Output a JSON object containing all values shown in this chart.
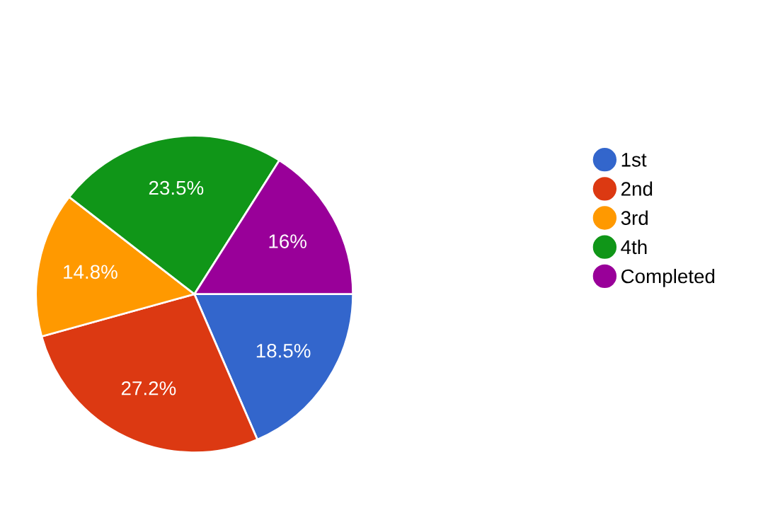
{
  "chart_data": {
    "type": "pie",
    "categories": [
      "1st",
      "2nd",
      "3rd",
      "4th",
      "Completed"
    ],
    "values": [
      18.5,
      27.2,
      14.8,
      23.5,
      16
    ],
    "colors": [
      "#3366cc",
      "#dc3912",
      "#ff9900",
      "#109618",
      "#990099"
    ],
    "value_labels": [
      "18.5%",
      "27.2%",
      "14.8%",
      "23.5%",
      "16%"
    ],
    "legend": "right"
  }
}
